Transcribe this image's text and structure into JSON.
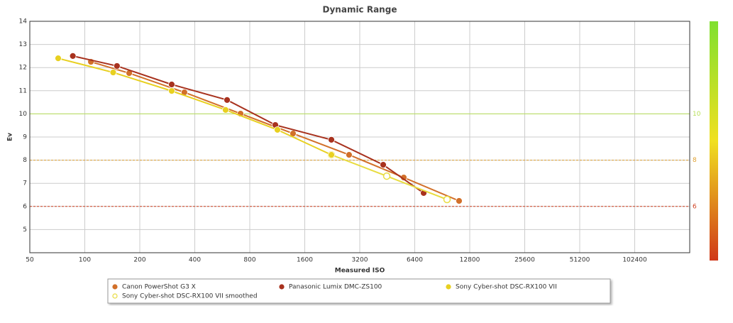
{
  "chart_data": {
    "type": "line",
    "title": "Dynamic Range",
    "x_label": "Measured ISO",
    "y_label": "Ev",
    "xscale": "log",
    "grid": true,
    "xlim": [
      50,
      204800
    ],
    "xticks": [
      50,
      100,
      200,
      400,
      800,
      1600,
      3200,
      6400,
      12800,
      25600,
      51200,
      102400
    ],
    "ylim": [
      4,
      14
    ],
    "yticks": [
      5,
      6,
      7,
      8,
      9,
      10,
      11,
      12,
      13,
      14
    ],
    "reference_lines": [
      {
        "value": 10,
        "color": "#b8e05a",
        "style": "solid"
      },
      {
        "value": 8,
        "color": "#e0a030",
        "style": "dashed"
      },
      {
        "value": 6,
        "color": "#d04020",
        "style": "dashed"
      }
    ],
    "series": [
      {
        "name": "Canon PowerShot G3 X",
        "color": "#d2702a",
        "marker": "filled",
        "x": [
          108,
          175,
          351,
          712,
          1380,
          2797,
          5571,
          11190
        ],
        "values": [
          12.25,
          11.76,
          10.93,
          10.01,
          9.15,
          8.23,
          7.25,
          6.24
        ]
      },
      {
        "name": "Panasonic Lumix DMC-ZS100",
        "color": "#a8321e",
        "marker": "filled",
        "x": [
          86,
          150,
          299,
          601,
          1104,
          2238,
          4300,
          7160
        ],
        "values": [
          12.5,
          12.07,
          11.27,
          10.6,
          9.52,
          8.88,
          7.8,
          6.58
        ]
      },
      {
        "name": "Sony Cyber-shot DSC-RX100 VII smoothed",
        "color": "#e8dc40",
        "marker": "hollow",
        "x": [
          2238,
          4497,
          9615
        ],
        "values": [
          8.23,
          7.31,
          6.3
        ]
      },
      {
        "name": "Sony Cyber-shot DSC-RX100 VII",
        "color": "#e8d020",
        "marker": "filled",
        "x": [
          71.5,
          143,
          299,
          590,
          1134,
          2238
        ],
        "values": [
          12.4,
          11.79,
          10.99,
          10.17,
          9.31,
          8.23
        ]
      }
    ],
    "legend_order": [
      0,
      1,
      3,
      2
    ]
  }
}
